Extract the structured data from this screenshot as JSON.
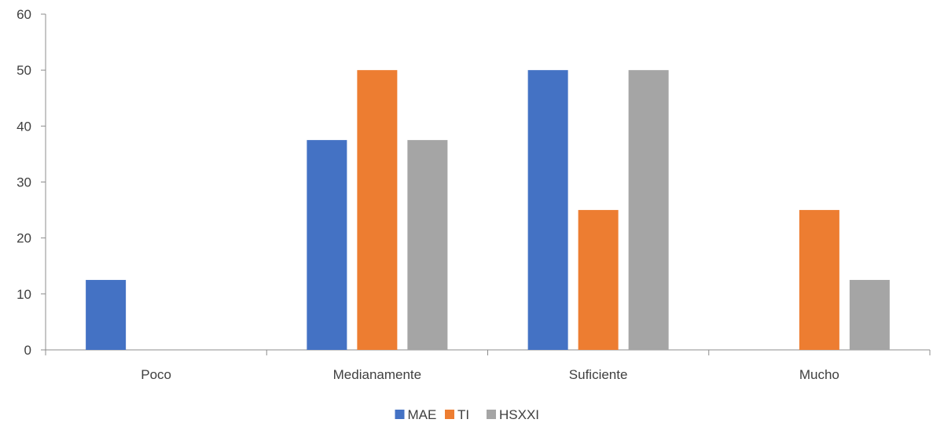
{
  "chart_data": {
    "type": "bar",
    "categories": [
      "Poco",
      "Medianamente",
      "Suficiente",
      "Mucho"
    ],
    "series": [
      {
        "name": "MAE",
        "color": "#4472C4",
        "values": [
          12.5,
          37.5,
          50,
          0
        ]
      },
      {
        "name": "TI",
        "color": "#ED7D31",
        "values": [
          0,
          50,
          25,
          25
        ]
      },
      {
        "name": "HSXXI",
        "color": "#A5A5A5",
        "values": [
          0,
          37.5,
          50,
          12.5
        ]
      }
    ],
    "ylim": [
      0,
      60
    ],
    "yticks": [
      0,
      10,
      20,
      30,
      40,
      50,
      60
    ],
    "title": "",
    "xlabel": "",
    "ylabel": "",
    "grid": false,
    "legend_position": "bottom"
  }
}
